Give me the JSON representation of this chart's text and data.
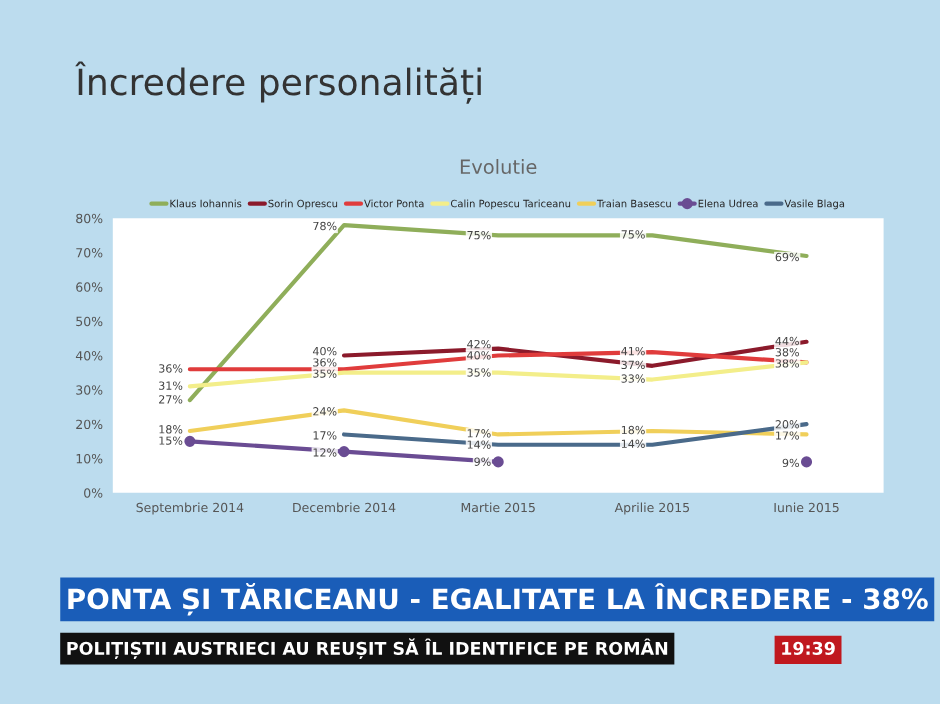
{
  "chart_data": {
    "type": "line",
    "title": "Încredere personalități",
    "subtitle": "Evolutie",
    "categories": [
      "Septembrie 2014",
      "Decembrie 2014",
      "Martie 2015",
      "Aprilie 2015",
      "Iunie 2015"
    ],
    "series": [
      {
        "name": "Klaus Iohannis",
        "color": "#8fae5a",
        "values": [
          27,
          78,
          75,
          75,
          69
        ],
        "value_labels": [
          "27%",
          "78%",
          "75%",
          "75%",
          "69%"
        ]
      },
      {
        "name": "Sorin Oprescu",
        "color": "#8b1a2b",
        "values": [
          null,
          40,
          42,
          37,
          44
        ],
        "value_labels": [
          null,
          "40%",
          "42%",
          "37%",
          "44%"
        ]
      },
      {
        "name": "Victor Ponta",
        "color": "#e03c3c",
        "values": [
          36,
          36,
          40,
          41,
          38
        ],
        "value_labels": [
          "36%",
          "36%",
          "40%",
          "41%",
          "38%"
        ]
      },
      {
        "name": "Calin Popescu Tariceanu",
        "color": "#f3ee8a",
        "values": [
          31,
          35,
          35,
          33,
          38
        ],
        "value_labels": [
          "31%",
          "35%",
          "35%",
          "33%",
          "38%"
        ]
      },
      {
        "name": "Traian Basescu",
        "color": "#f0cf5a",
        "values": [
          18,
          24,
          17,
          18,
          17
        ],
        "value_labels": [
          "18%",
          "24%",
          "17%",
          "18%",
          "17%"
        ]
      },
      {
        "name": "Elena Udrea",
        "color": "#6a4c93",
        "marker": "circle",
        "values": [
          15,
          12,
          9,
          null,
          9
        ],
        "value_labels": [
          "15%",
          "12%",
          "9%",
          null,
          "9%"
        ]
      },
      {
        "name": "Vasile Blaga",
        "color": "#4a6a8a",
        "values": [
          null,
          17,
          14,
          14,
          20
        ],
        "value_labels": [
          null,
          "17%",
          "14%",
          "14%",
          "20%"
        ]
      }
    ],
    "ylim": [
      0,
      80
    ],
    "yticks": [
      {
        "value": 0,
        "label": "0%"
      },
      {
        "value": 10,
        "label": "10%"
      },
      {
        "value": 20,
        "label": "20%"
      },
      {
        "value": 30,
        "label": "30%"
      },
      {
        "value": 40,
        "label": "40%"
      },
      {
        "value": 50,
        "label": "50%"
      },
      {
        "value": 60,
        "label": "60%"
      },
      {
        "value": 70,
        "label": "70%"
      },
      {
        "value": 80,
        "label": "80%"
      }
    ],
    "legend": "top",
    "marker": "none",
    "line_style": "solid",
    "annotations": [
      "PONTA ȘI TĂRICEANU - EGALITATE LA ÎNCREDERE - 38%",
      "POLIȚIȘTII AUSTRIECI AU REUȘIT SĂ ÎL IDENTIFICE PE ROMÂN",
      "19:39"
    ]
  }
}
